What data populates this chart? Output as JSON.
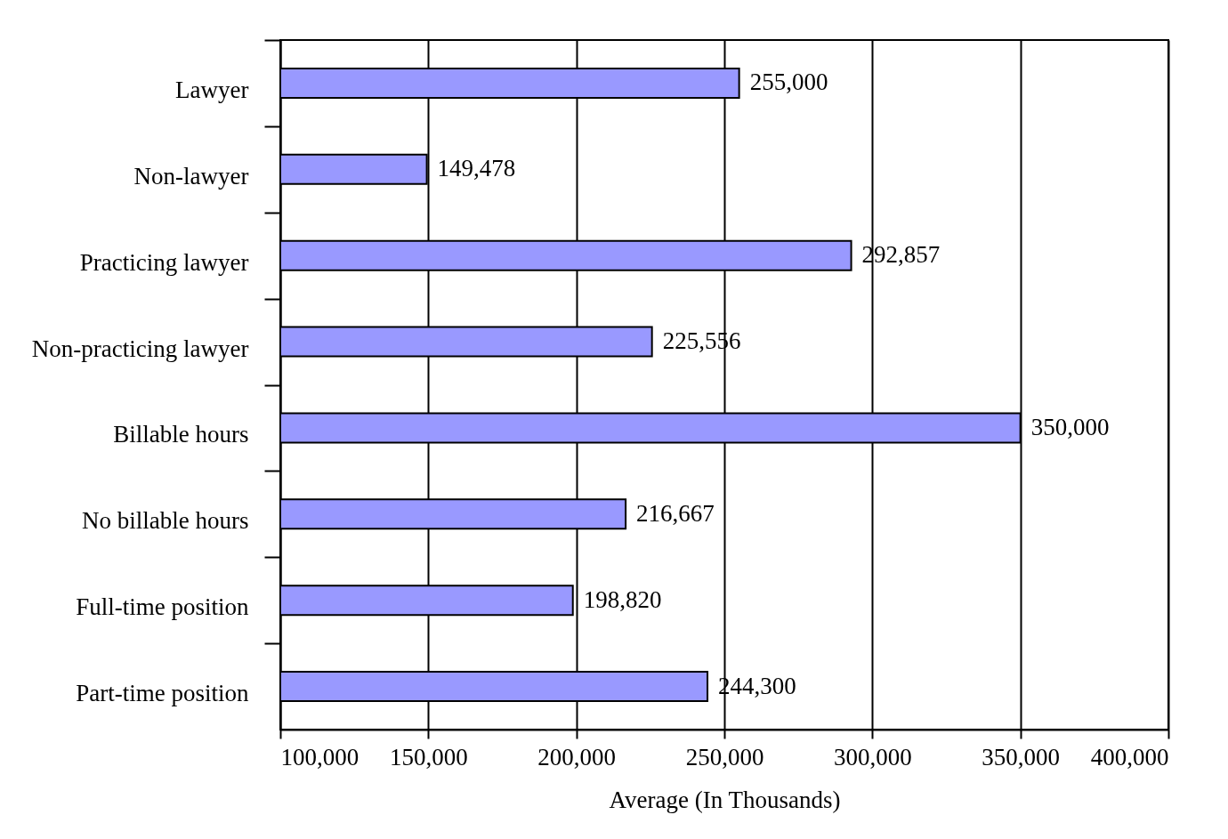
{
  "chart_data": {
    "type": "bar",
    "orientation": "horizontal",
    "categories": [
      "Lawyer",
      "Non-lawyer",
      "Practicing lawyer",
      "Non-practicing lawyer",
      "Billable hours",
      "No billable hours",
      "Full-time position",
      "Part-time position"
    ],
    "values": [
      255000,
      149478,
      292857,
      225556,
      350000,
      216667,
      198820,
      244300
    ],
    "value_labels": [
      "255,000",
      "149,478",
      "292,857",
      "225,556",
      "350,000",
      "216,667",
      "198,820",
      "244,300"
    ],
    "color": "#9999ff",
    "xlabel": "Average (In Thousands)",
    "xlim": [
      100000,
      400000
    ],
    "xticks": [
      {
        "value": 100000,
        "label": "100,000"
      },
      {
        "value": 150000,
        "label": "150,000"
      },
      {
        "value": 200000,
        "label": "200,000"
      },
      {
        "value": 250000,
        "label": "250,000"
      },
      {
        "value": 300000,
        "label": "300,000"
      },
      {
        "value": 350000,
        "label": "350,000"
      },
      {
        "value": 400000,
        "label": "400,000"
      }
    ],
    "grid": "x"
  }
}
